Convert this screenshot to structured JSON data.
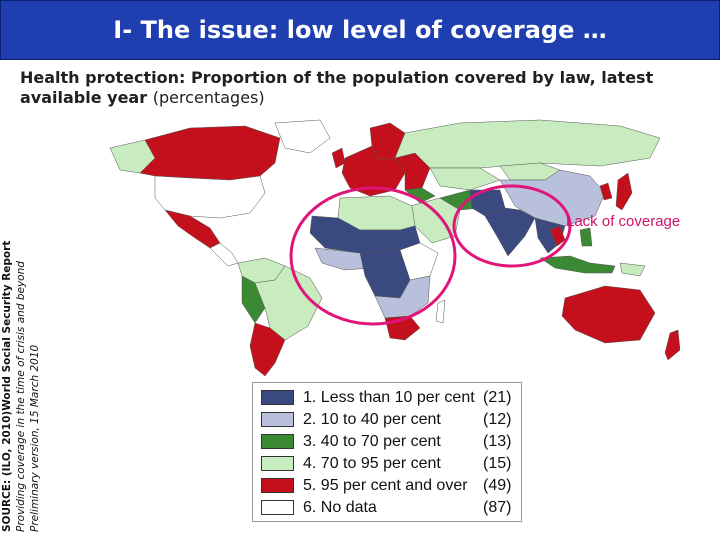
{
  "slide": {
    "title": "I- The issue: low level of coverage …",
    "subtitle_bold": "Health protection: Proportion of the population covered by law, latest available year",
    "subtitle_paren": "(percentages)"
  },
  "source": {
    "line1": "SOURCE: (ILO, 2010)World Social Security Report",
    "line2": "Providing coverage in the time of crisis and beyond",
    "line3": "Preliminary version, 15 March 2010"
  },
  "callout": {
    "text": "Lack of coverage",
    "color": "#d0106a"
  },
  "colors": {
    "title_bg": "#1f3fb0",
    "less_than_10": "#3a4a80",
    "10_to_40": "#b8c0dc",
    "40_to_70": "#3b8a33",
    "70_to_95": "#c8ebc0",
    "95_and_over": "#c4101c",
    "no_data": "#ffffff",
    "circle": "#e0157a"
  },
  "legend": {
    "items": [
      {
        "label": "1. Less than 10 per cent",
        "count": "(21)",
        "color": "#3a4a80"
      },
      {
        "label": "2. 10 to 40 per cent",
        "count": "(12)",
        "color": "#b8c0dc"
      },
      {
        "label": "3. 40 to 70 per cent",
        "count": "(13)",
        "color": "#3b8a33"
      },
      {
        "label": "4. 70 to 95 per cent",
        "count": "(15)",
        "color": "#c8ebc0"
      },
      {
        "label": "5. 95 per cent and over",
        "count": "(49)",
        "color": "#c4101c"
      },
      {
        "label": "6. No data",
        "count": "(87)",
        "color": "#ffffff"
      }
    ]
  }
}
